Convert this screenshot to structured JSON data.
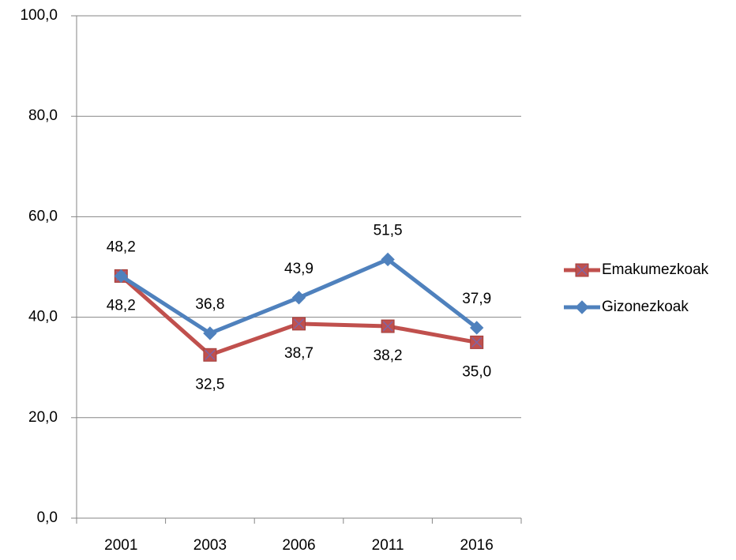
{
  "chart_data": {
    "type": "line",
    "categories": [
      "2001",
      "2003",
      "2006",
      "2011",
      "2016"
    ],
    "series": [
      {
        "name": "Emakumezkoak",
        "color": "#c0504d",
        "marker": "square-x",
        "values": [
          48.2,
          32.5,
          38.7,
          38.2,
          35.0
        ],
        "value_labels": [
          "48,2",
          "32,5",
          "38,7",
          "38,2",
          "35,0"
        ]
      },
      {
        "name": "Gizonezkoak",
        "color": "#4f81bd",
        "marker": "diamond",
        "values": [
          48.2,
          36.8,
          43.9,
          51.5,
          37.9
        ],
        "value_labels": [
          "48,2",
          "36,8",
          "43,9",
          "51,5",
          "37,9"
        ]
      }
    ],
    "ylim": [
      0,
      100
    ],
    "yticks": [
      {
        "value": 0,
        "label": "0,0"
      },
      {
        "value": 20,
        "label": "20,0"
      },
      {
        "value": 40,
        "label": "40,0"
      },
      {
        "value": 60,
        "label": "60,0"
      },
      {
        "value": 80,
        "label": "80,0"
      },
      {
        "value": 100,
        "label": "100,0"
      }
    ],
    "grid": true,
    "legend": "right"
  }
}
